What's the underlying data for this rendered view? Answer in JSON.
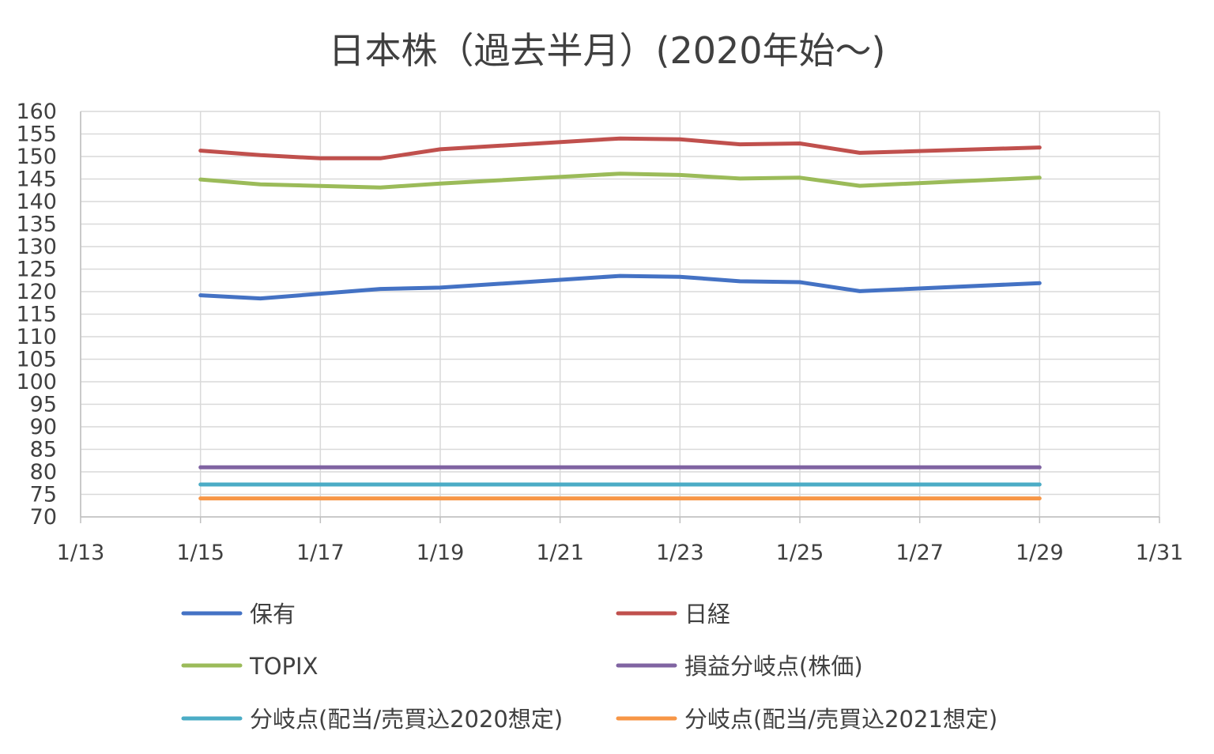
{
  "chart_data": {
    "type": "line",
    "title": "日本株（過去半月）(2020年始〜)",
    "xlabel": "",
    "ylabel": "",
    "xlim": [
      "1/13",
      "1/31"
    ],
    "ylim": [
      70,
      160
    ],
    "x_ticks": [
      "1/13",
      "1/15",
      "1/17",
      "1/19",
      "1/21",
      "1/23",
      "1/25",
      "1/27",
      "1/29",
      "1/31"
    ],
    "y_ticks": [
      160,
      155,
      150,
      145,
      140,
      135,
      130,
      125,
      120,
      115,
      110,
      105,
      100,
      95,
      90,
      85,
      80,
      75,
      70
    ],
    "grid": true,
    "legend_position": "bottom",
    "x": [
      "1/15",
      "1/16",
      "1/17",
      "1/18",
      "1/19",
      "1/20",
      "1/21",
      "1/22",
      "1/23",
      "1/24",
      "1/25",
      "1/26",
      "1/27",
      "1/28",
      "1/29"
    ],
    "series": [
      {
        "name": "保有",
        "color": "#4472C4",
        "values": [
          119.2,
          118.5,
          null,
          120.6,
          120.9,
          null,
          null,
          123.5,
          123.3,
          122.3,
          122.1,
          120.1,
          null,
          null,
          121.9
        ]
      },
      {
        "name": "日経",
        "color": "#C0504D",
        "values": [
          151.3,
          150.3,
          149.6,
          149.6,
          151.6,
          null,
          null,
          154.0,
          153.8,
          152.7,
          152.9,
          150.8,
          null,
          null,
          152.0
        ]
      },
      {
        "name": "TOPIX",
        "color": "#9BBB59",
        "values": [
          144.9,
          143.8,
          null,
          143.1,
          144.0,
          null,
          null,
          146.2,
          145.9,
          145.1,
          145.3,
          143.5,
          null,
          null,
          145.3
        ]
      },
      {
        "name": "損益分岐点(株価)",
        "color": "#8064A2",
        "values": [
          81,
          81,
          81,
          81,
          81,
          81,
          81,
          81,
          81,
          81,
          81,
          81,
          81,
          81,
          81
        ]
      },
      {
        "name": "分岐点(配当/売買込2020想定)",
        "color": "#4BACC6",
        "values": [
          77.2,
          77.2,
          77.2,
          77.2,
          77.2,
          77.2,
          77.2,
          77.2,
          77.2,
          77.2,
          77.2,
          77.2,
          77.2,
          77.2,
          77.2
        ]
      },
      {
        "name": "分岐点(配当/売買込2021想定)",
        "color": "#F79646",
        "values": [
          74.1,
          74.1,
          74.1,
          74.1,
          74.1,
          74.1,
          74.1,
          74.1,
          74.1,
          74.1,
          74.1,
          74.1,
          74.1,
          74.1,
          74.1
        ]
      }
    ]
  }
}
